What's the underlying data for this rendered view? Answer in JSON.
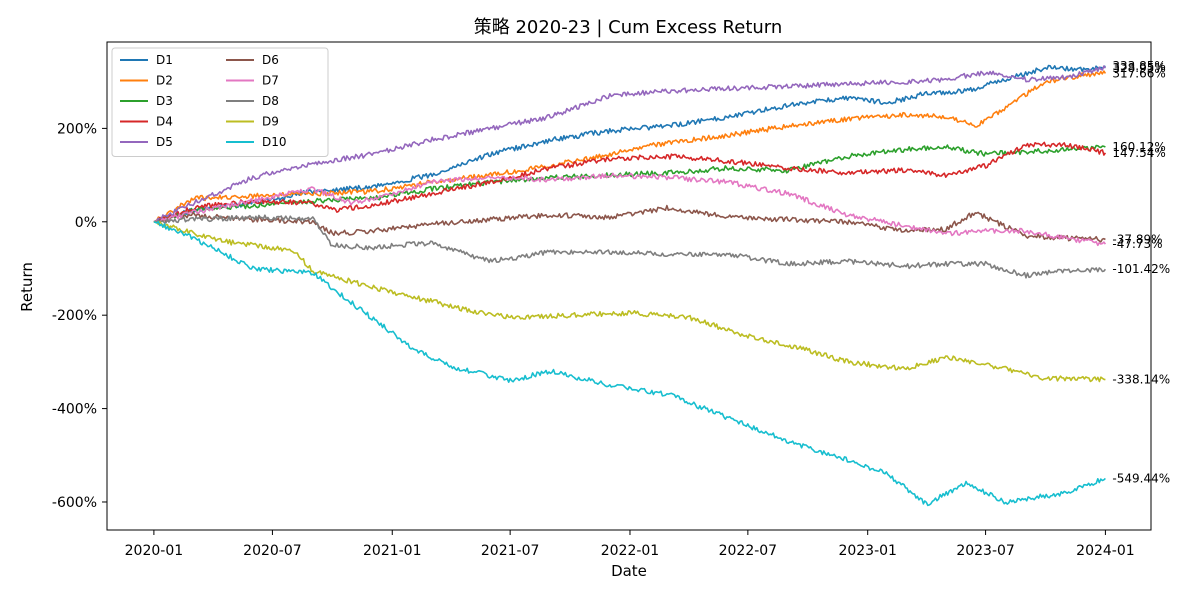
{
  "chart_data": {
    "type": "line",
    "title": "策略 2020-23 | Cum Excess Return",
    "xlabel": "Date",
    "ylabel": "Return",
    "x_range": [
      "2019-10-21",
      "2024-03-11"
    ],
    "ylim": [
      -660,
      385
    ],
    "x_ticks": [
      {
        "date": "2020-01-01",
        "label": "2020-01"
      },
      {
        "date": "2020-07-01",
        "label": "2020-07"
      },
      {
        "date": "2021-01-01",
        "label": "2021-01"
      },
      {
        "date": "2021-07-01",
        "label": "2021-07"
      },
      {
        "date": "2022-01-01",
        "label": "2022-01"
      },
      {
        "date": "2022-07-01",
        "label": "2022-07"
      },
      {
        "date": "2023-01-01",
        "label": "2023-01"
      },
      {
        "date": "2023-07-01",
        "label": "2023-07"
      },
      {
        "date": "2024-01-01",
        "label": "2024-01"
      }
    ],
    "y_ticks": [
      {
        "value": 200,
        "label": "200%"
      },
      {
        "value": 0,
        "label": "0%"
      },
      {
        "value": -200,
        "label": "-200%"
      },
      {
        "value": -400,
        "label": "-400%"
      },
      {
        "value": -600,
        "label": "-600%"
      }
    ],
    "grid": false,
    "legend_position": "top-left",
    "legend_columns": 2,
    "series": [
      {
        "name": "D1",
        "color": "#1f77b4",
        "end_label": "333.85%",
        "end_value": 333.85,
        "points": [
          [
            "2020-01-01",
            0
          ],
          [
            "2020-03-01",
            25
          ],
          [
            "2020-06-01",
            40
          ],
          [
            "2020-09-01",
            65
          ],
          [
            "2020-12-01",
            75
          ],
          [
            "2021-03-01",
            100
          ],
          [
            "2021-06-01",
            145
          ],
          [
            "2021-09-01",
            175
          ],
          [
            "2021-12-01",
            195
          ],
          [
            "2022-03-01",
            205
          ],
          [
            "2022-06-01",
            225
          ],
          [
            "2022-09-01",
            250
          ],
          [
            "2022-12-01",
            265
          ],
          [
            "2023-02-01",
            255
          ],
          [
            "2023-04-01",
            275
          ],
          [
            "2023-06-01",
            280
          ],
          [
            "2023-08-01",
            305
          ],
          [
            "2023-10-01",
            330
          ],
          [
            "2023-12-01",
            325
          ],
          [
            "2024-01-01",
            333.85
          ]
        ]
      },
      {
        "name": "D2",
        "color": "#ff7f0e",
        "end_label": "317.66%",
        "end_value": 317.66,
        "points": [
          [
            "2020-01-01",
            0
          ],
          [
            "2020-03-01",
            50
          ],
          [
            "2020-06-01",
            55
          ],
          [
            "2020-09-01",
            60
          ],
          [
            "2020-12-01",
            65
          ],
          [
            "2021-03-01",
            85
          ],
          [
            "2021-06-01",
            100
          ],
          [
            "2021-09-01",
            120
          ],
          [
            "2021-12-01",
            145
          ],
          [
            "2022-03-01",
            170
          ],
          [
            "2022-06-01",
            185
          ],
          [
            "2022-09-01",
            205
          ],
          [
            "2022-12-01",
            220
          ],
          [
            "2023-03-01",
            230
          ],
          [
            "2023-05-01",
            225
          ],
          [
            "2023-06-15",
            205
          ],
          [
            "2023-08-01",
            245
          ],
          [
            "2023-10-01",
            300
          ],
          [
            "2023-12-01",
            315
          ],
          [
            "2024-01-01",
            317.66
          ]
        ]
      },
      {
        "name": "D3",
        "color": "#2ca02c",
        "end_label": "160.12%",
        "end_value": 160.12,
        "points": [
          [
            "2020-01-01",
            0
          ],
          [
            "2020-03-01",
            25
          ],
          [
            "2020-06-01",
            35
          ],
          [
            "2020-09-01",
            45
          ],
          [
            "2020-12-01",
            50
          ],
          [
            "2021-03-01",
            70
          ],
          [
            "2021-06-01",
            85
          ],
          [
            "2021-09-01",
            95
          ],
          [
            "2021-12-01",
            100
          ],
          [
            "2022-03-01",
            105
          ],
          [
            "2022-06-01",
            115
          ],
          [
            "2022-09-01",
            110
          ],
          [
            "2022-12-01",
            140
          ],
          [
            "2023-03-01",
            155
          ],
          [
            "2023-05-01",
            160
          ],
          [
            "2023-07-01",
            145
          ],
          [
            "2023-09-01",
            150
          ],
          [
            "2023-11-01",
            155
          ],
          [
            "2024-01-01",
            160.12
          ]
        ]
      },
      {
        "name": "D4",
        "color": "#d62728",
        "end_label": "147.54%",
        "end_value": 147.54,
        "points": [
          [
            "2020-01-01",
            0
          ],
          [
            "2020-03-01",
            30
          ],
          [
            "2020-06-01",
            45
          ],
          [
            "2020-09-01",
            40
          ],
          [
            "2020-10-01",
            25
          ],
          [
            "2020-12-01",
            35
          ],
          [
            "2021-03-01",
            60
          ],
          [
            "2021-06-01",
            85
          ],
          [
            "2021-09-01",
            115
          ],
          [
            "2021-12-01",
            135
          ],
          [
            "2022-03-01",
            140
          ],
          [
            "2022-06-01",
            130
          ],
          [
            "2022-09-01",
            115
          ],
          [
            "2022-12-01",
            105
          ],
          [
            "2023-03-01",
            110
          ],
          [
            "2023-05-01",
            100
          ],
          [
            "2023-07-01",
            120
          ],
          [
            "2023-09-01",
            165
          ],
          [
            "2023-11-01",
            165
          ],
          [
            "2024-01-01",
            147.54
          ]
        ]
      },
      {
        "name": "D5",
        "color": "#9467bd",
        "end_label": "328.95%",
        "end_value": 328.95,
        "points": [
          [
            "2020-01-01",
            0
          ],
          [
            "2020-03-01",
            40
          ],
          [
            "2020-06-01",
            95
          ],
          [
            "2020-09-01",
            125
          ],
          [
            "2020-12-01",
            145
          ],
          [
            "2021-03-01",
            175
          ],
          [
            "2021-06-01",
            200
          ],
          [
            "2021-09-01",
            225
          ],
          [
            "2021-12-01",
            270
          ],
          [
            "2022-03-01",
            280
          ],
          [
            "2022-06-01",
            285
          ],
          [
            "2022-09-01",
            290
          ],
          [
            "2022-12-01",
            295
          ],
          [
            "2023-03-01",
            300
          ],
          [
            "2023-05-01",
            305
          ],
          [
            "2023-07-01",
            320
          ],
          [
            "2023-09-01",
            305
          ],
          [
            "2023-11-01",
            310
          ],
          [
            "2024-01-01",
            328.95
          ]
        ]
      },
      {
        "name": "D6",
        "color": "#8c564b",
        "end_label": "-37.89%",
        "end_value": -37.89,
        "points": [
          [
            "2020-01-01",
            0
          ],
          [
            "2020-03-01",
            15
          ],
          [
            "2020-06-01",
            5
          ],
          [
            "2020-09-01",
            0
          ],
          [
            "2020-10-01",
            -25
          ],
          [
            "2020-12-01",
            -20
          ],
          [
            "2021-03-01",
            -5
          ],
          [
            "2021-06-01",
            5
          ],
          [
            "2021-09-01",
            15
          ],
          [
            "2021-12-01",
            10
          ],
          [
            "2022-03-01",
            30
          ],
          [
            "2022-06-01",
            10
          ],
          [
            "2022-09-01",
            5
          ],
          [
            "2022-12-01",
            0
          ],
          [
            "2023-03-01",
            -20
          ],
          [
            "2023-05-01",
            -15
          ],
          [
            "2023-06-15",
            20
          ],
          [
            "2023-09-01",
            -30
          ],
          [
            "2023-11-01",
            -35
          ],
          [
            "2024-01-01",
            -37.89
          ]
        ]
      },
      {
        "name": "D7",
        "color": "#e377c2",
        "end_label": "-47.73%",
        "end_value": -47.73,
        "points": [
          [
            "2020-01-01",
            0
          ],
          [
            "2020-03-01",
            20
          ],
          [
            "2020-06-01",
            45
          ],
          [
            "2020-09-01",
            70
          ],
          [
            "2020-11-01",
            40
          ],
          [
            "2021-01-01",
            60
          ],
          [
            "2021-03-01",
            85
          ],
          [
            "2021-06-01",
            95
          ],
          [
            "2021-09-01",
            90
          ],
          [
            "2021-12-01",
            100
          ],
          [
            "2022-03-01",
            95
          ],
          [
            "2022-06-01",
            85
          ],
          [
            "2022-09-01",
            60
          ],
          [
            "2022-12-01",
            15
          ],
          [
            "2023-03-01",
            -10
          ],
          [
            "2023-05-01",
            -25
          ],
          [
            "2023-07-01",
            -20
          ],
          [
            "2023-09-01",
            -20
          ],
          [
            "2023-11-01",
            -35
          ],
          [
            "2024-01-01",
            -47.73
          ]
        ]
      },
      {
        "name": "D8",
        "color": "#7f7f7f",
        "end_label": "-101.42%",
        "end_value": -101.42,
        "points": [
          [
            "2020-01-01",
            0
          ],
          [
            "2020-03-01",
            5
          ],
          [
            "2020-06-01",
            10
          ],
          [
            "2020-09-01",
            5
          ],
          [
            "2020-10-01",
            -50
          ],
          [
            "2020-12-01",
            -55
          ],
          [
            "2021-03-01",
            -45
          ],
          [
            "2021-06-01",
            -85
          ],
          [
            "2021-09-01",
            -65
          ],
          [
            "2021-12-01",
            -65
          ],
          [
            "2022-03-01",
            -70
          ],
          [
            "2022-06-01",
            -70
          ],
          [
            "2022-09-01",
            -90
          ],
          [
            "2022-12-01",
            -85
          ],
          [
            "2023-03-01",
            -95
          ],
          [
            "2023-05-01",
            -90
          ],
          [
            "2023-07-01",
            -90
          ],
          [
            "2023-09-01",
            -115
          ],
          [
            "2023-11-01",
            -105
          ],
          [
            "2024-01-01",
            -101.42
          ]
        ]
      },
      {
        "name": "D9",
        "color": "#bcbd22",
        "end_label": "-338.14%",
        "end_value": -338.14,
        "points": [
          [
            "2020-01-01",
            0
          ],
          [
            "2020-03-01",
            -25
          ],
          [
            "2020-05-01",
            -45
          ],
          [
            "2020-08-01",
            -60
          ],
          [
            "2020-09-01",
            -105
          ],
          [
            "2020-12-01",
            -140
          ],
          [
            "2021-03-01",
            -170
          ],
          [
            "2021-05-01",
            -190
          ],
          [
            "2021-07-01",
            -205
          ],
          [
            "2021-10-01",
            -200
          ],
          [
            "2022-01-01",
            -195
          ],
          [
            "2022-04-01",
            -205
          ],
          [
            "2022-07-01",
            -245
          ],
          [
            "2022-10-01",
            -275
          ],
          [
            "2022-12-01",
            -300
          ],
          [
            "2023-03-01",
            -315
          ],
          [
            "2023-05-01",
            -290
          ],
          [
            "2023-08-01",
            -315
          ],
          [
            "2023-10-01",
            -335
          ],
          [
            "2024-01-01",
            -338.14
          ]
        ]
      },
      {
        "name": "D10",
        "color": "#17becf",
        "end_label": "-549.44%",
        "end_value": -549.44,
        "points": [
          [
            "2020-01-01",
            0
          ],
          [
            "2020-03-01",
            -35
          ],
          [
            "2020-06-01",
            -100
          ],
          [
            "2020-09-01",
            -110
          ],
          [
            "2020-11-01",
            -175
          ],
          [
            "2021-02-01",
            -270
          ],
          [
            "2021-04-01",
            -310
          ],
          [
            "2021-07-01",
            -340
          ],
          [
            "2021-09-01",
            -320
          ],
          [
            "2021-12-01",
            -350
          ],
          [
            "2022-03-01",
            -370
          ],
          [
            "2022-06-01",
            -420
          ],
          [
            "2022-09-01",
            -470
          ],
          [
            "2022-12-01",
            -510
          ],
          [
            "2023-02-01",
            -540
          ],
          [
            "2023-04-01",
            -605
          ],
          [
            "2023-06-01",
            -560
          ],
          [
            "2023-08-01",
            -600
          ],
          [
            "2023-11-01",
            -580
          ],
          [
            "2024-01-01",
            -549.44
          ]
        ]
      }
    ]
  }
}
